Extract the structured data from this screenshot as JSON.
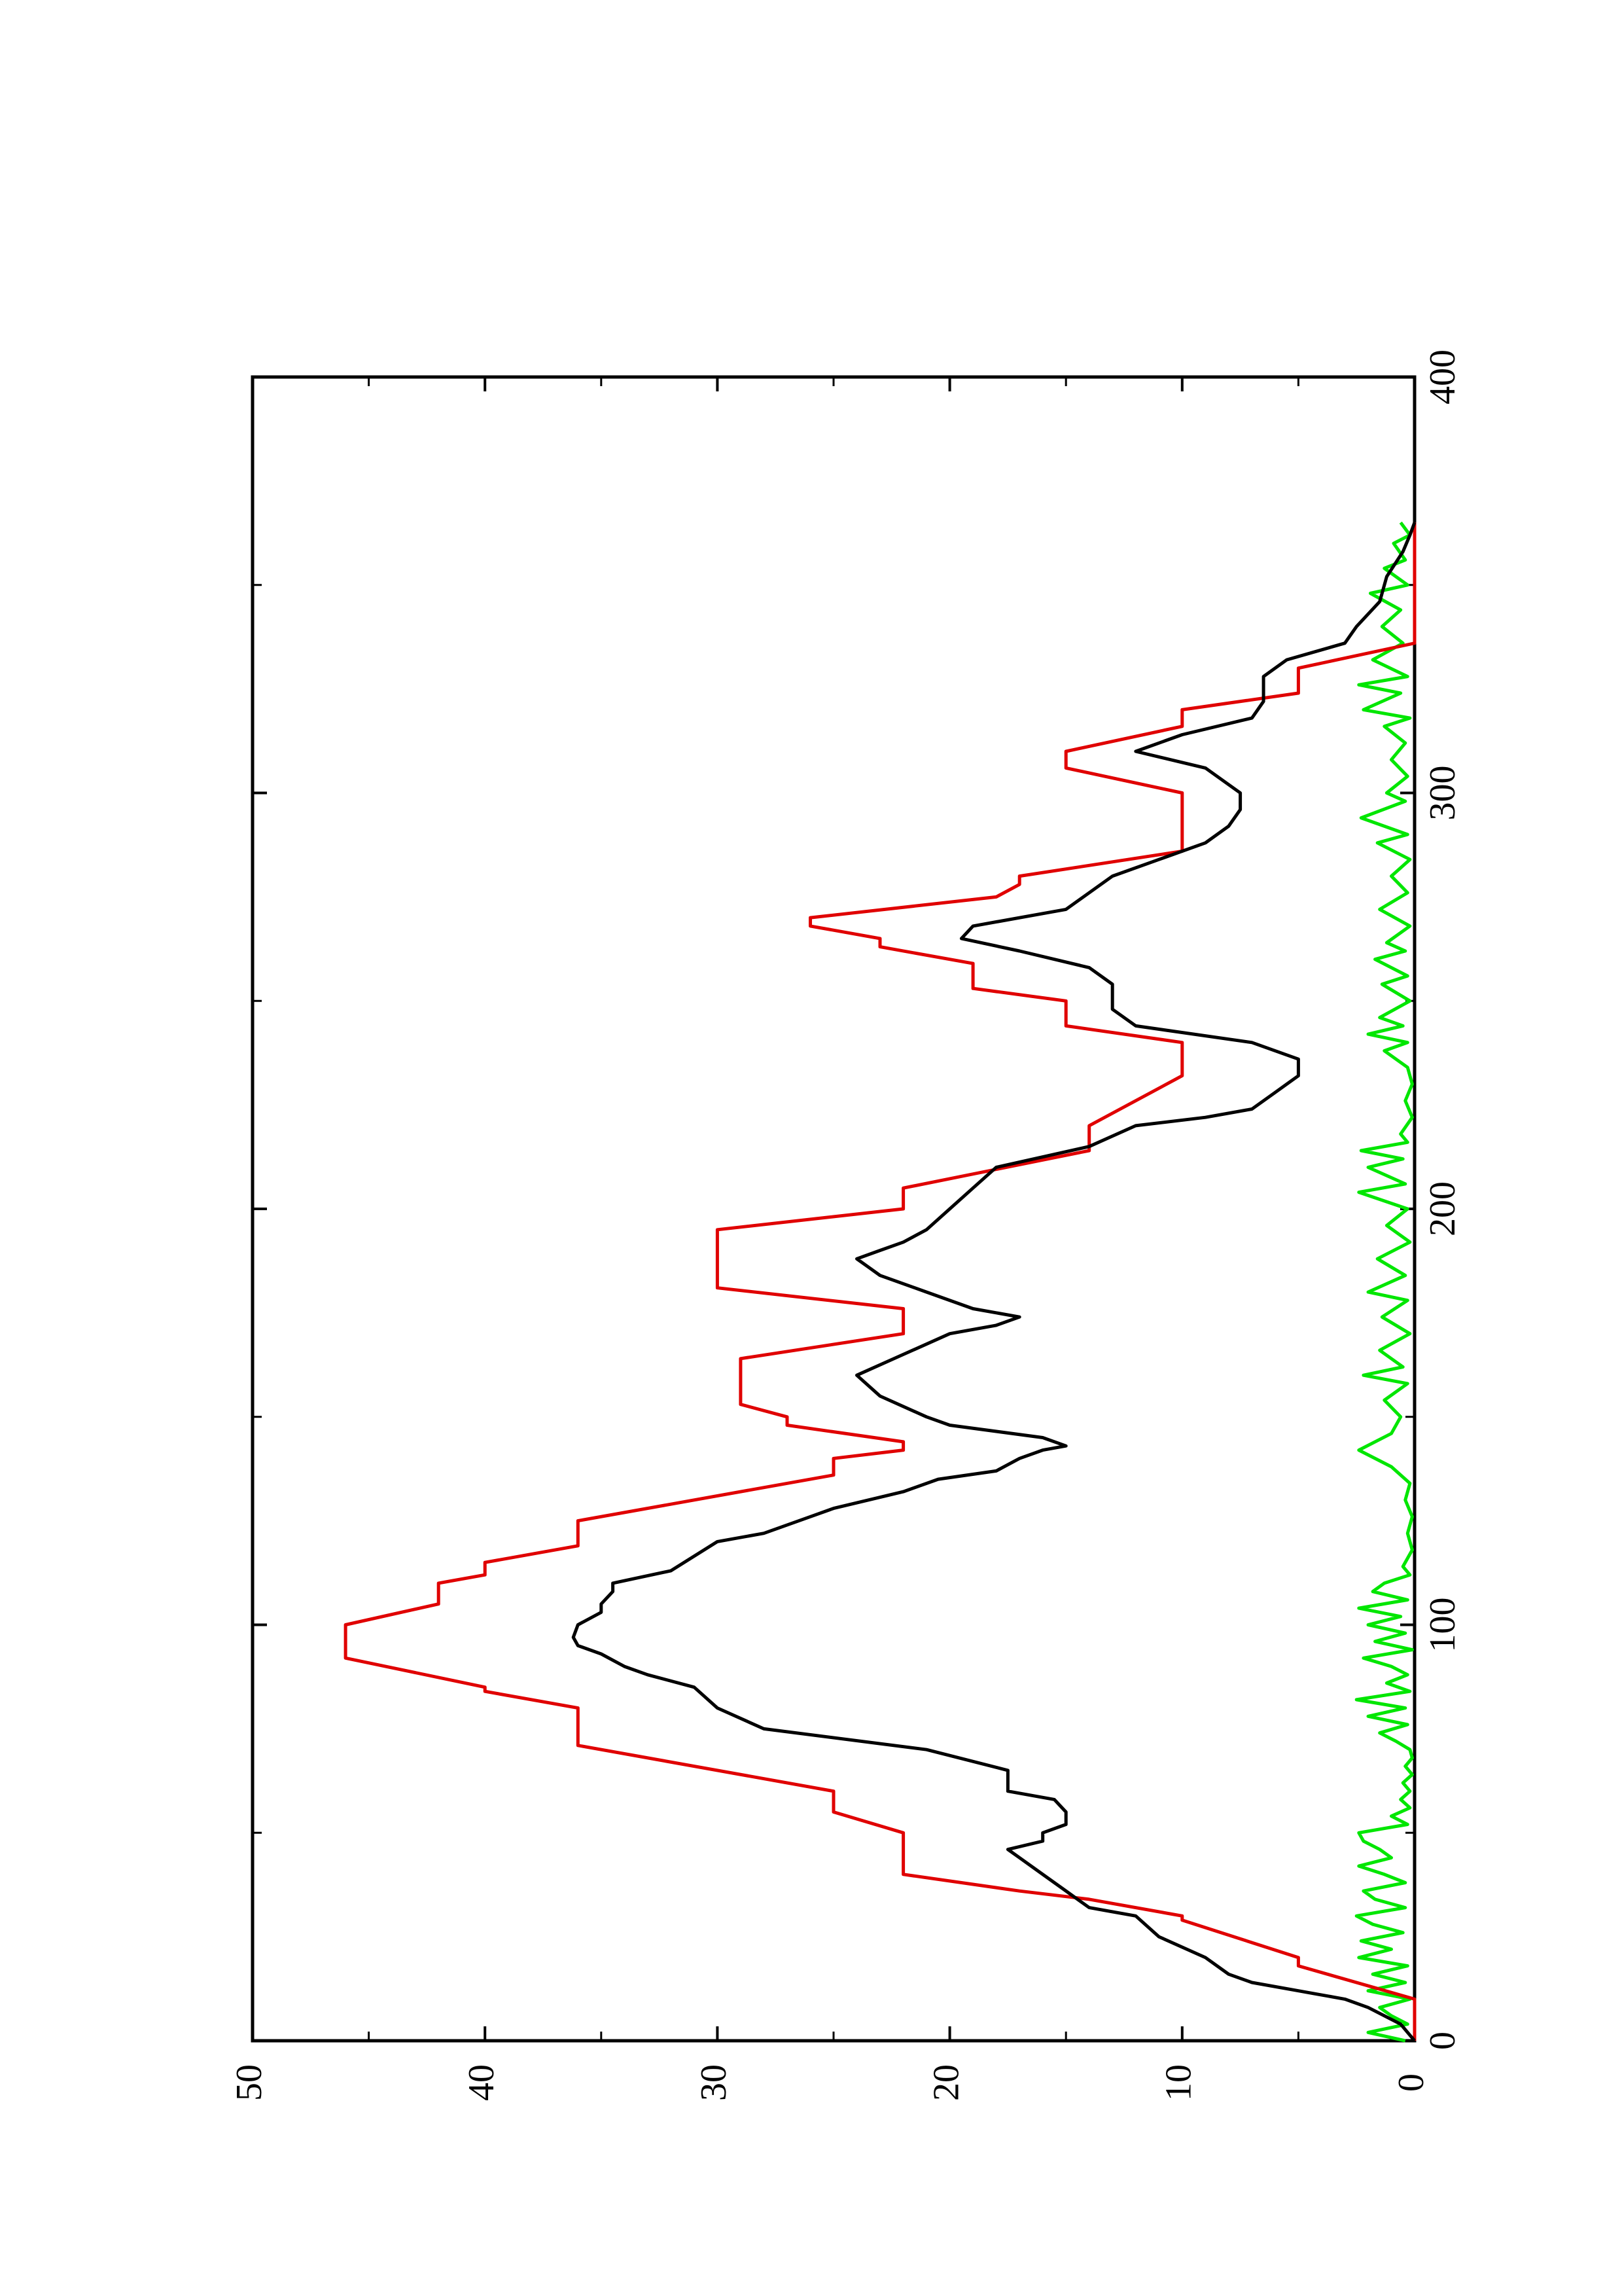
{
  "chart_data": {
    "type": "line",
    "title": "",
    "xlabel": "",
    "ylabel": "",
    "orientation": "rotated-90-counterclockwise",
    "xlim": [
      0,
      400
    ],
    "ylim": [
      0,
      50
    ],
    "x_ticks": [
      0,
      100,
      200,
      300,
      400
    ],
    "y_ticks": [
      0,
      10,
      20,
      30,
      40,
      50
    ],
    "grid": false,
    "legend": "none",
    "series": [
      {
        "color": "#e00000",
        "style": "step",
        "points": [
          [
            0,
            0
          ],
          [
            10,
            0
          ],
          [
            18,
            5
          ],
          [
            20,
            5
          ],
          [
            29,
            10
          ],
          [
            30,
            10
          ],
          [
            34,
            14
          ],
          [
            36,
            17
          ],
          [
            40,
            22
          ],
          [
            50,
            22
          ],
          [
            55,
            25
          ],
          [
            60,
            25
          ],
          [
            71,
            36
          ],
          [
            80,
            36
          ],
          [
            84,
            40
          ],
          [
            85,
            40
          ],
          [
            92,
            46
          ],
          [
            100,
            46
          ],
          [
            105,
            42
          ],
          [
            110,
            42
          ],
          [
            112,
            40
          ],
          [
            115,
            40
          ],
          [
            119,
            36
          ],
          [
            125,
            36
          ],
          [
            136,
            25
          ],
          [
            140,
            25
          ],
          [
            142,
            22
          ],
          [
            144,
            22
          ],
          [
            148,
            27
          ],
          [
            150,
            27
          ],
          [
            153,
            29
          ],
          [
            160,
            29
          ],
          [
            164,
            29
          ],
          [
            170,
            22
          ],
          [
            176,
            22
          ],
          [
            181,
            30
          ],
          [
            195,
            30
          ],
          [
            200,
            22
          ],
          [
            205,
            22
          ],
          [
            214,
            14
          ],
          [
            220,
            14
          ],
          [
            232,
            10
          ],
          [
            240,
            10
          ],
          [
            244,
            15
          ],
          [
            250,
            15
          ],
          [
            253,
            19
          ],
          [
            259,
            19
          ],
          [
            263,
            23
          ],
          [
            265,
            23
          ],
          [
            268,
            26
          ],
          [
            270,
            26
          ],
          [
            275,
            18
          ],
          [
            278,
            17
          ],
          [
            280,
            17
          ],
          [
            286,
            10
          ],
          [
            300,
            10
          ],
          [
            306,
            15
          ],
          [
            310,
            15
          ],
          [
            316,
            10
          ],
          [
            320,
            10
          ],
          [
            324,
            5
          ],
          [
            330,
            5
          ],
          [
            336,
            0
          ],
          [
            365,
            0
          ]
        ]
      },
      {
        "color": "#000000",
        "style": "line",
        "points": [
          [
            0,
            0
          ],
          [
            4,
            0.6
          ],
          [
            8,
            2
          ],
          [
            10,
            3
          ],
          [
            12,
            5
          ],
          [
            14,
            7
          ],
          [
            16,
            8
          ],
          [
            20,
            9
          ],
          [
            25,
            11
          ],
          [
            30,
            12
          ],
          [
            32,
            14
          ],
          [
            36,
            15
          ],
          [
            40,
            16
          ],
          [
            44,
            17
          ],
          [
            46,
            17.5
          ],
          [
            48,
            16
          ],
          [
            50,
            16
          ],
          [
            52,
            15
          ],
          [
            55,
            15
          ],
          [
            58,
            15.5
          ],
          [
            60,
            17.5
          ],
          [
            65,
            17.5
          ],
          [
            70,
            21
          ],
          [
            75,
            28
          ],
          [
            80,
            30
          ],
          [
            85,
            31
          ],
          [
            88,
            33
          ],
          [
            90,
            34
          ],
          [
            93,
            35
          ],
          [
            95,
            36
          ],
          [
            97,
            36.2
          ],
          [
            100,
            36
          ],
          [
            103,
            35
          ],
          [
            105,
            35
          ],
          [
            108,
            34.5
          ],
          [
            110,
            34.5
          ],
          [
            113,
            32
          ],
          [
            120,
            30
          ],
          [
            122,
            28
          ],
          [
            126,
            26
          ],
          [
            128,
            25
          ],
          [
            132,
            22
          ],
          [
            135,
            20.5
          ],
          [
            137,
            18
          ],
          [
            140,
            17
          ],
          [
            142,
            16
          ],
          [
            143,
            15
          ],
          [
            145,
            16
          ],
          [
            148,
            20
          ],
          [
            150,
            21
          ],
          [
            155,
            23
          ],
          [
            160,
            24
          ],
          [
            165,
            22
          ],
          [
            170,
            20
          ],
          [
            172,
            18
          ],
          [
            174,
            17
          ],
          [
            176,
            19
          ],
          [
            180,
            21
          ],
          [
            184,
            23
          ],
          [
            186,
            23.5
          ],
          [
            188,
            24
          ],
          [
            190,
            23
          ],
          [
            192,
            22
          ],
          [
            195,
            21
          ],
          [
            200,
            20
          ],
          [
            205,
            19
          ],
          [
            210,
            18
          ],
          [
            215,
            14
          ],
          [
            220,
            12
          ],
          [
            222,
            9
          ],
          [
            224,
            7
          ],
          [
            228,
            6
          ],
          [
            232,
            5
          ],
          [
            236,
            5
          ],
          [
            240,
            7
          ],
          [
            244,
            12
          ],
          [
            248,
            13
          ],
          [
            254,
            13
          ],
          [
            258,
            14
          ],
          [
            262,
            17
          ],
          [
            265,
            19.5
          ],
          [
            268,
            19
          ],
          [
            272,
            15
          ],
          [
            276,
            14
          ],
          [
            280,
            13
          ],
          [
            284,
            11
          ],
          [
            288,
            9
          ],
          [
            292,
            8
          ],
          [
            296,
            7.5
          ],
          [
            300,
            7.5
          ],
          [
            306,
            9
          ],
          [
            310,
            12
          ],
          [
            314,
            10
          ],
          [
            318,
            7
          ],
          [
            322,
            6.5
          ],
          [
            328,
            6.5
          ],
          [
            332,
            5.5
          ],
          [
            336,
            3
          ],
          [
            340,
            2.5
          ],
          [
            346,
            1.5
          ],
          [
            352,
            1.2
          ],
          [
            358,
            0.5
          ],
          [
            362,
            0.2
          ],
          [
            365,
            0
          ]
        ]
      },
      {
        "color": "#00e600",
        "style": "line",
        "points": [
          [
            0,
            0.4
          ],
          [
            2,
            2
          ],
          [
            4,
            0.3
          ],
          [
            6,
            1
          ],
          [
            8,
            1.5
          ],
          [
            10,
            0.2
          ],
          [
            12,
            2
          ],
          [
            14,
            0.4
          ],
          [
            16,
            1.8
          ],
          [
            18,
            0.3
          ],
          [
            20,
            2.4
          ],
          [
            22,
            1
          ],
          [
            24,
            2.3
          ],
          [
            26,
            0.5
          ],
          [
            28,
            1.8
          ],
          [
            30,
            2.5
          ],
          [
            32,
            0.4
          ],
          [
            34,
            1.7
          ],
          [
            36,
            2.2
          ],
          [
            38,
            0.4
          ],
          [
            40,
            1.3
          ],
          [
            42,
            2.4
          ],
          [
            44,
            1
          ],
          [
            46,
            1.5
          ],
          [
            48,
            2.2
          ],
          [
            50,
            2.4
          ],
          [
            52,
            0.3
          ],
          [
            54,
            1
          ],
          [
            56,
            0.2
          ],
          [
            58,
            0.6
          ],
          [
            60,
            0.2
          ],
          [
            62,
            0.5
          ],
          [
            64,
            0.1
          ],
          [
            66,
            0.4
          ],
          [
            68,
            0.1
          ],
          [
            70,
            0.2
          ],
          [
            72,
            0.8
          ],
          [
            74,
            1.5
          ],
          [
            76,
            0.3
          ],
          [
            78,
            2
          ],
          [
            80,
            0.4
          ],
          [
            82,
            2.5
          ],
          [
            84,
            0.2
          ],
          [
            86,
            1.2
          ],
          [
            88,
            0.3
          ],
          [
            90,
            1
          ],
          [
            92,
            2.2
          ],
          [
            94,
            0.1
          ],
          [
            96,
            1.7
          ],
          [
            98,
            0.4
          ],
          [
            100,
            2
          ],
          [
            102,
            0.6
          ],
          [
            104,
            2.4
          ],
          [
            106,
            0.3
          ],
          [
            108,
            1.8
          ],
          [
            110,
            1.3
          ],
          [
            112,
            0.2
          ],
          [
            114,
            0.5
          ],
          [
            118,
            0.1
          ],
          [
            122,
            0.3
          ],
          [
            126,
            0.1
          ],
          [
            130,
            0.4
          ],
          [
            134,
            0.2
          ],
          [
            138,
            1
          ],
          [
            142,
            2.4
          ],
          [
            146,
            1
          ],
          [
            150,
            0.6
          ],
          [
            154,
            1.3
          ],
          [
            158,
            0.3
          ],
          [
            160,
            2.2
          ],
          [
            162,
            0.5
          ],
          [
            166,
            1.5
          ],
          [
            170,
            0.2
          ],
          [
            174,
            1.4
          ],
          [
            178,
            0.3
          ],
          [
            180,
            2
          ],
          [
            184,
            0.4
          ],
          [
            188,
            1.6
          ],
          [
            192,
            0.2
          ],
          [
            196,
            1.2
          ],
          [
            200,
            0.3
          ],
          [
            204,
            2.4
          ],
          [
            206,
            0.4
          ],
          [
            210,
            2
          ],
          [
            212,
            0.5
          ],
          [
            214,
            2.3
          ],
          [
            216,
            0.3
          ],
          [
            218,
            0.6
          ],
          [
            222,
            0.1
          ],
          [
            226,
            0.4
          ],
          [
            230,
            0.1
          ],
          [
            234,
            0.3
          ],
          [
            238,
            1.3
          ],
          [
            240,
            0.3
          ],
          [
            242,
            2
          ],
          [
            244,
            0.5
          ],
          [
            246,
            1.5
          ],
          [
            250,
            0.2
          ],
          [
            254,
            1.4
          ],
          [
            256,
            0.3
          ],
          [
            260,
            1.7
          ],
          [
            262,
            0.4
          ],
          [
            264,
            1.2
          ],
          [
            268,
            0.2
          ],
          [
            272,
            1.5
          ],
          [
            276,
            0.3
          ],
          [
            280,
            1
          ],
          [
            284,
            0.2
          ],
          [
            288,
            1.6
          ],
          [
            290,
            0.3
          ],
          [
            294,
            2.3
          ],
          [
            298,
            0.4
          ],
          [
            300,
            1.2
          ],
          [
            304,
            0.3
          ],
          [
            308,
            1
          ],
          [
            312,
            0.4
          ],
          [
            316,
            1.3
          ],
          [
            318,
            0.2
          ],
          [
            320,
            2.2
          ],
          [
            324,
            0.6
          ],
          [
            326,
            2.4
          ],
          [
            328,
            0.3
          ],
          [
            332,
            1.8
          ],
          [
            336,
            0.5
          ],
          [
            340,
            1.4
          ],
          [
            344,
            0.6
          ],
          [
            348,
            1.9
          ],
          [
            350,
            0.3
          ],
          [
            354,
            1.3
          ],
          [
            356,
            0.4
          ],
          [
            360,
            0.9
          ],
          [
            362,
            0.2
          ],
          [
            365,
            0.6
          ]
        ]
      }
    ]
  }
}
